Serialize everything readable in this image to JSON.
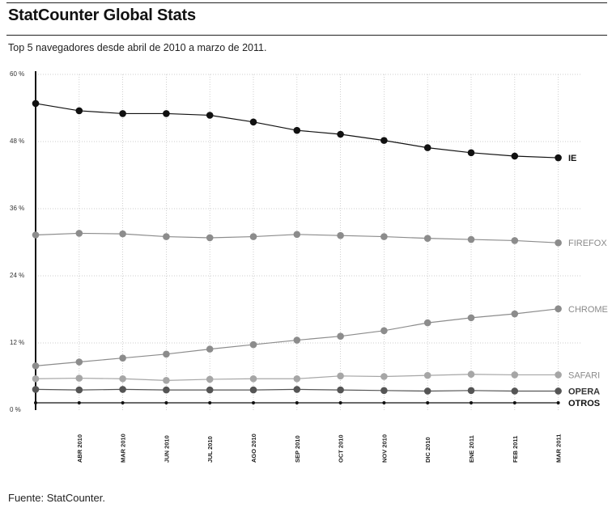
{
  "header": {
    "title": "StatCounter Global Stats",
    "subtitle": "Top 5 navegadores desde abril de 2010 a marzo de 2011."
  },
  "footer": {
    "source": "Fuente: StatCounter."
  },
  "chart_data": {
    "type": "line",
    "title": "StatCounter Global Stats",
    "subtitle": "Top 5 navegadores desde abril de 2010 a marzo de 2011.",
    "xlabel": "",
    "ylabel": "",
    "ylim": [
      0,
      60
    ],
    "yticks": [
      "0 %",
      "12 %",
      "24 %",
      "36 %",
      "48 %",
      "60 %"
    ],
    "ytick_values": [
      0,
      12,
      24,
      36,
      48,
      60
    ],
    "categories": [
      "MAR 2010",
      "ABR 2010",
      "MAR 2010",
      "JUN 2010",
      "JUL 2010",
      "AGO 2010",
      "SEP 2010",
      "OCT 2010",
      "NOV 2010",
      "DIC 2010",
      "ENE 2011",
      "FEB 2011",
      "MAR 2011"
    ],
    "tick_labels": [
      "ABR 2010",
      "MAR 2010",
      "JUN 2010",
      "JUL 2010",
      "AGO 2010",
      "SEP 2010",
      "OCT 2010",
      "NOV 2010",
      "DIC 2010",
      "ENE 2011",
      "FEB 2011",
      "MAR 2011"
    ],
    "grid": true,
    "legend": "right",
    "series": [
      {
        "name": "IE",
        "color": "#111111",
        "values": [
          54.8,
          53.5,
          53.0,
          53.0,
          52.7,
          51.5,
          50.0,
          49.3,
          48.2,
          46.9,
          46.0,
          45.4,
          45.1
        ]
      },
      {
        "name": "FIREFOX",
        "color": "#8c8c8c",
        "values": [
          31.3,
          31.6,
          31.5,
          31.0,
          30.8,
          31.0,
          31.4,
          31.2,
          31.0,
          30.7,
          30.5,
          30.3,
          29.9
        ]
      },
      {
        "name": "CHROME",
        "color": "#8c8c8c",
        "values": [
          7.9,
          8.6,
          9.3,
          10.0,
          10.9,
          11.7,
          12.5,
          13.2,
          14.2,
          15.6,
          16.5,
          17.2,
          18.1
        ]
      },
      {
        "name": "SAFARI",
        "color": "#a6a6a6",
        "values": [
          5.6,
          5.7,
          5.6,
          5.3,
          5.5,
          5.6,
          5.6,
          6.1,
          6.0,
          6.2,
          6.4,
          6.3,
          6.3
        ]
      },
      {
        "name": "OPERA",
        "color": "#555555",
        "values": [
          3.7,
          3.6,
          3.7,
          3.6,
          3.6,
          3.6,
          3.7,
          3.6,
          3.5,
          3.4,
          3.5,
          3.4,
          3.4
        ]
      },
      {
        "name": "OTROS",
        "color": "#111111",
        "values": [
          1.3,
          1.3,
          1.3,
          1.3,
          1.3,
          1.3,
          1.3,
          1.3,
          1.3,
          1.3,
          1.3,
          1.3,
          1.3
        ]
      }
    ]
  }
}
